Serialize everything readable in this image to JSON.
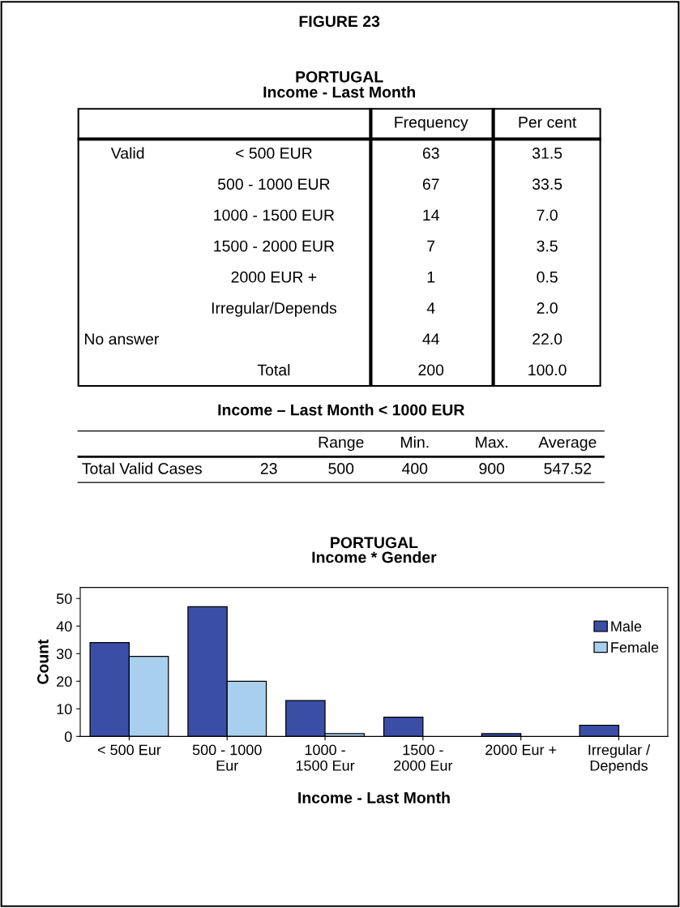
{
  "chart_data": [
    {
      "type": "other",
      "title": "FIGURE 23",
      "subtitle": "PORTUGAL\nIncome - Last Month",
      "categories": [
        null,
        null,
        "Frequency",
        "Per cent"
      ],
      "annotations": [
        "Valid",
        "< 500 EUR",
        "63",
        "31.5",
        null,
        "500 - 1000 EUR",
        "67",
        "33.5",
        null,
        "1000 - 1500 EUR",
        "14",
        "7.0",
        null,
        "1500 - 2000 EUR",
        "7",
        "3.5",
        null,
        "2000 EUR +",
        "1",
        "0.5",
        null,
        "Irregular/Depends",
        "4",
        "2.0",
        "No answer",
        null,
        "44",
        "22.0",
        null,
        "Total",
        "200",
        "100.0"
      ]
    },
    {
      "type": "other",
      "title": "Income – Last Month < 1000 EUR",
      "categories": [
        null,
        null,
        "Range",
        "Min.",
        "Max.",
        "Average"
      ],
      "annotations": [
        "Total Valid Cases",
        "23",
        "500",
        "400",
        "900",
        "547.52"
      ]
    },
    {
      "type": "bar",
      "title": "PORTUGAL\nIncome * Gender",
      "xlabel": "Income - Last Month",
      "ylabel": "Count",
      "categories": [
        "< 500 Eur",
        "500 - 1000\nEur",
        "1000 -\n1500 Eur",
        "1500 -\n2000 Eur",
        "2000 Eur +",
        "Irregular /\nDepends"
      ],
      "series": [
        {
          "name": "Male",
          "color": "#3b4ea6",
          "values": [
            34,
            47,
            13,
            7,
            1,
            4
          ]
        },
        {
          "name": "Female",
          "color": "#a9cfee",
          "values": [
            29,
            20,
            1,
            0,
            0,
            0
          ]
        }
      ],
      "ylim": [
        0,
        54
      ],
      "yticks": [
        0,
        10,
        20,
        30,
        40,
        50
      ],
      "legend": "right",
      "grid": false
    }
  ]
}
